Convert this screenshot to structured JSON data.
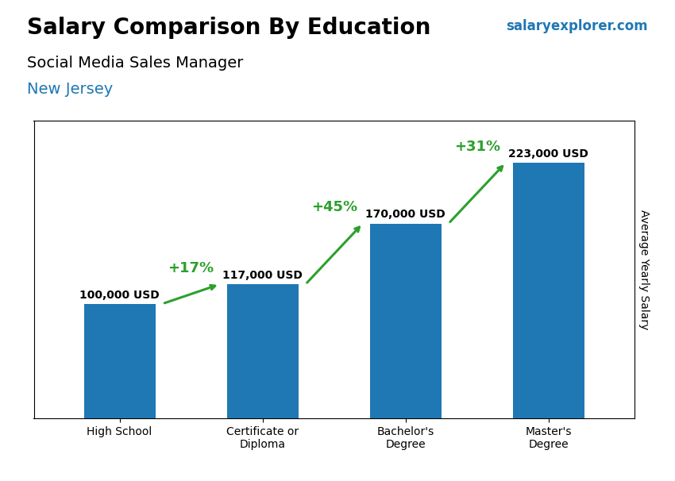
{
  "chart_data": {
    "type": "bar",
    "title": "Salary Comparison By Education",
    "subtitle": "Social Media Sales Manager",
    "location": "New Jersey",
    "source": "salaryexplorer.com",
    "ylabel": "Average Yearly Salary",
    "categories": [
      "High School",
      "Certificate or\nDiploma",
      "Bachelor's\nDegree",
      "Master's\nDegree"
    ],
    "values": [
      100000,
      117000,
      170000,
      223000
    ],
    "value_labels": [
      "100,000 USD",
      "117,000 USD",
      "170,000 USD",
      "223,000 USD"
    ],
    "data_labels": true,
    "change_labels": [
      "+17%",
      "+45%",
      "+31%"
    ],
    "ylim": [
      0,
      260000
    ],
    "yticks": [],
    "tick_labels": "x",
    "grid": false
  }
}
